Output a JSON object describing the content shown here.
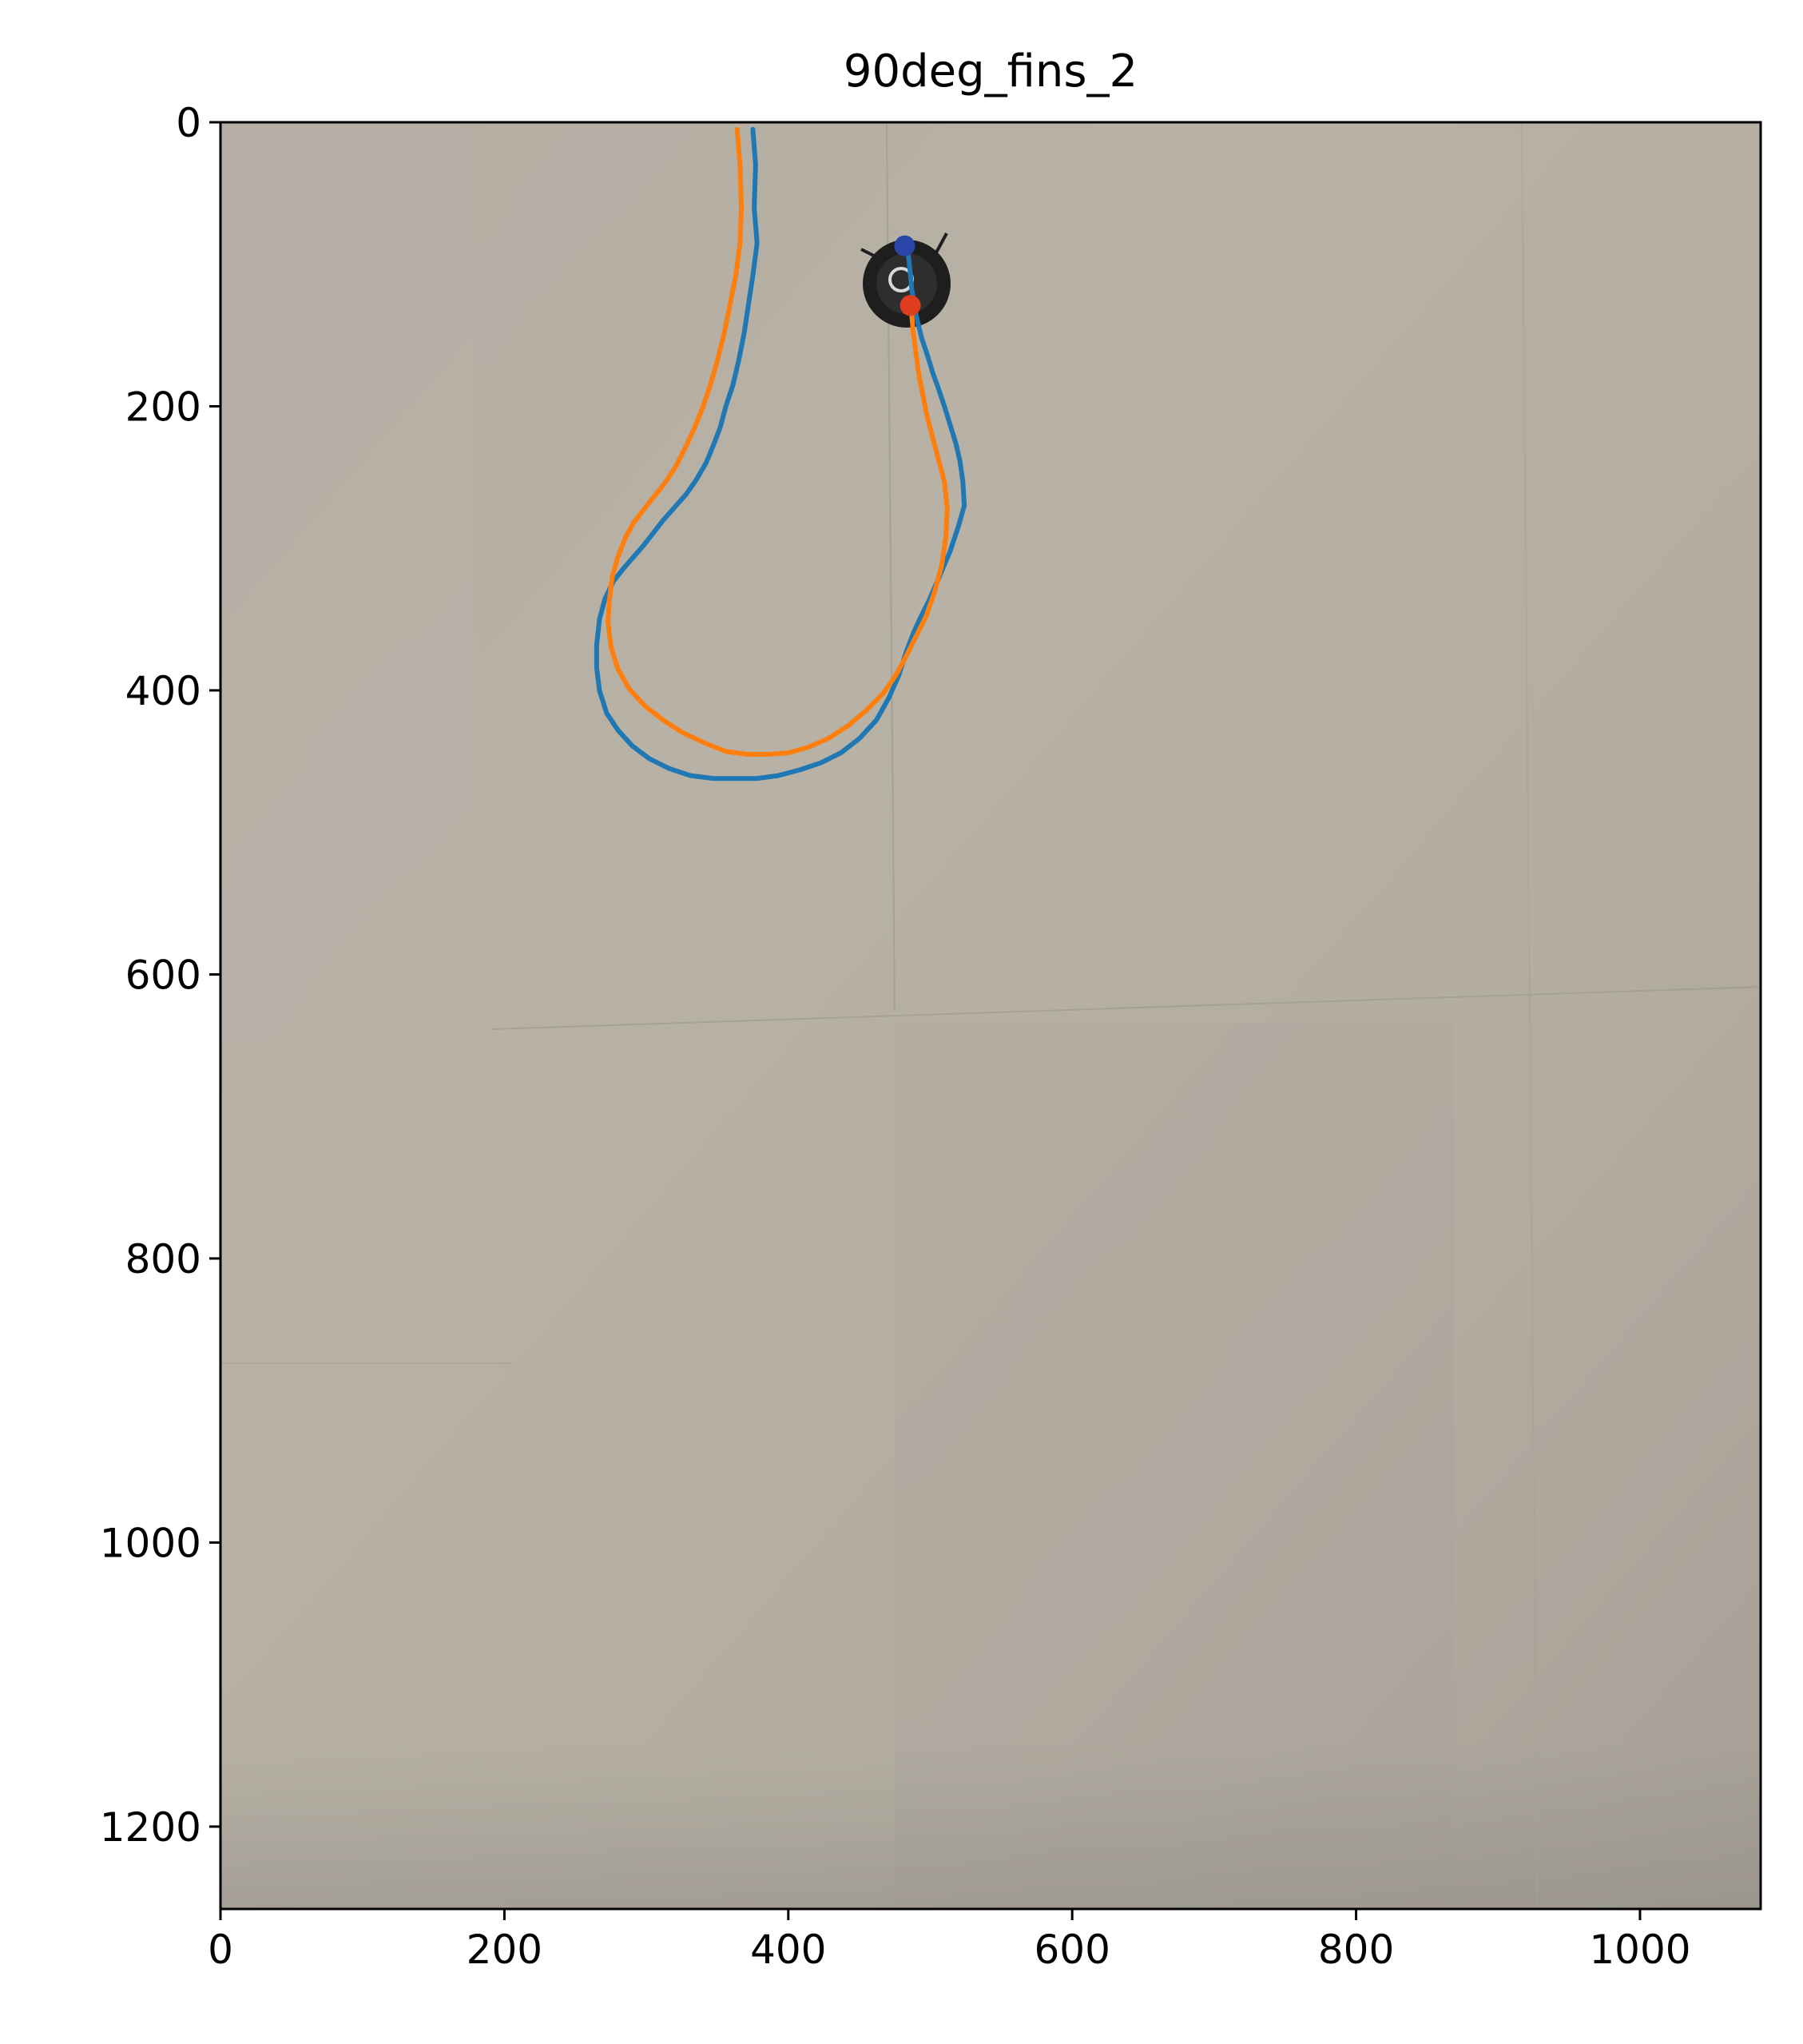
{
  "chart_data": {
    "type": "line",
    "title": "90deg_fins_2",
    "xlabel": "",
    "ylabel": "",
    "xlim": [
      0,
      1085
    ],
    "ylim": [
      1258,
      0
    ],
    "y_inverted": true,
    "grid": false,
    "legend": "none",
    "background": "photograph of a light grey floor with a small black circular robot near the top",
    "x_ticks": [
      0,
      200,
      400,
      600,
      800,
      1000
    ],
    "y_ticks": [
      0,
      200,
      400,
      600,
      800,
      1000,
      1200
    ],
    "series": [
      {
        "color": "#1f77b4",
        "x": [
          375,
          377,
          376,
          378,
          375,
          372,
          369,
          365,
          361,
          356,
          352,
          347,
          342,
          335,
          328,
          320,
          312,
          305,
          298,
          291,
          284,
          277,
          271,
          267,
          265,
          265,
          267,
          272,
          280,
          290,
          302,
          316,
          331,
          347,
          363,
          378,
          393,
          408,
          423,
          437,
          450,
          462,
          471,
          478,
          483,
          488,
          493,
          499,
          506,
          514,
          520,
          524,
          523,
          521,
          518,
          514,
          510,
          506,
          502,
          498,
          494,
          491,
          489,
          487,
          486,
          485,
          484,
          483
        ],
        "y": [
          5,
          30,
          60,
          85,
          108,
          128,
          148,
          168,
          185,
          200,
          215,
          228,
          240,
          252,
          262,
          271,
          280,
          289,
          298,
          306,
          314,
          323,
          335,
          350,
          368,
          384,
          400,
          416,
          428,
          439,
          448,
          455,
          460,
          462,
          462,
          462,
          460,
          456,
          451,
          444,
          434,
          421,
          405,
          389,
          373,
          360,
          349,
          337,
          321,
          302,
          284,
          270,
          253,
          239,
          226,
          213,
          200,
          188,
          177,
          164,
          152,
          140,
          130,
          118,
          107,
          97,
          90,
          85
        ]
      },
      {
        "color": "#ff7f0e",
        "x": [
          364,
          366,
          367,
          366,
          363,
          359,
          355,
          350,
          345,
          340,
          334,
          328,
          321,
          313,
          305,
          298,
          291,
          285,
          280,
          276,
          274,
          273,
          275,
          280,
          288,
          299,
          312,
          326,
          341,
          356,
          371,
          386,
          400,
          414,
          428,
          442,
          455,
          467,
          476,
          483,
          490,
          497,
          503,
          508,
          511,
          512,
          510,
          506,
          502,
          498,
          495,
          492,
          490,
          488,
          487,
          486
        ],
        "y": [
          5,
          30,
          60,
          85,
          108,
          128,
          148,
          168,
          185,
          200,
          215,
          228,
          242,
          254,
          264,
          273,
          282,
          293,
          306,
          320,
          336,
          352,
          369,
          385,
          399,
          411,
          421,
          430,
          437,
          443,
          445,
          445,
          444,
          440,
          434,
          425,
          414,
          402,
          389,
          376,
          362,
          348,
          331,
          312,
          292,
          272,
          253,
          238,
          223,
          208,
          193,
          178,
          163,
          148,
          136,
          128
        ]
      }
    ],
    "markers": [
      {
        "color": "#e03c1e",
        "x": 486,
        "y": 129
      },
      {
        "color": "#2a45a8",
        "x": 482,
        "y": 87
      }
    ]
  }
}
